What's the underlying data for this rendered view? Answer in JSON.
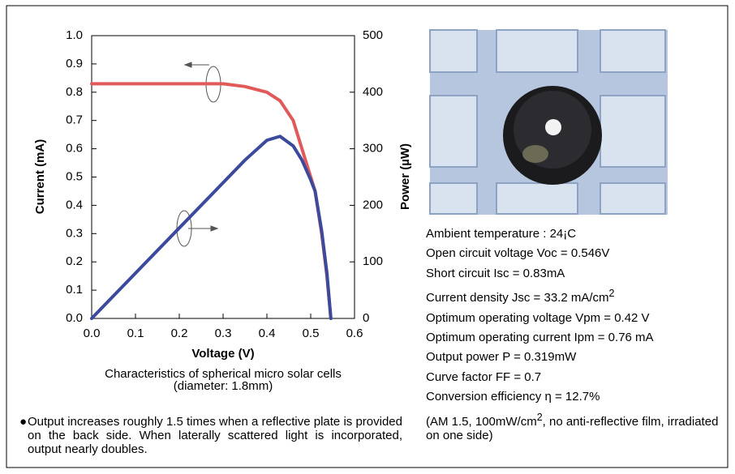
{
  "chart_data": {
    "type": "line",
    "x": [
      0,
      0.1,
      0.2,
      0.3,
      0.35,
      0.4,
      0.43,
      0.46,
      0.48,
      0.5,
      0.51,
      0.525,
      0.537,
      0.546
    ],
    "series": [
      {
        "color": "#e05a5a",
        "values": [
          0.83,
          0.83,
          0.83,
          0.83,
          0.82,
          0.8,
          0.77,
          0.7,
          0.6,
          0.5,
          0.45,
          0.3,
          0.15,
          0
        ]
      },
      {
        "color": "#3b4a9c",
        "axis": "y2",
        "values": [
          0,
          80,
          160,
          240,
          280,
          315,
          322,
          305,
          280,
          245,
          225,
          155,
          80,
          0
        ]
      }
    ],
    "xlim": [
      0,
      0.6
    ],
    "xticks": [
      {
        "value": 0,
        "label": "0.0"
      },
      0.1,
      0.2,
      0.3,
      0.4,
      0.5,
      0.6
    ],
    "ylim": [
      0,
      1
    ],
    "yticks": [
      {
        "value": 0,
        "label": "0.0"
      },
      0.1,
      0.2,
      0.3,
      0.4,
      0.5,
      0.6,
      0.7,
      0.8,
      0.9,
      {
        "value": 1,
        "label": "1.0"
      }
    ],
    "y2lim": [
      0,
      500
    ],
    "y2ticks": [
      0,
      100,
      200,
      300,
      400,
      500
    ],
    "xlabel": "Voltage (V)",
    "ylabel": "Current (mA)",
    "y2label": "Power (µW)"
  },
  "caption": {
    "line1": "Characteristics of spherical micro solar cells",
    "line2": "(diameter: 1.8mm)"
  },
  "note": "Output increases roughly 1.5 times when a reflective plate is provided on the back side. When laterally scattered light is incorporated, output nearly doubles.",
  "specs": [
    "Ambient temperature : 24¡C",
    "Open circuit voltage Voc = 0.546V",
    "Short circuit Isc = 0.83mA",
    {
      "text": "Current density Jsc = 33.2 mA/cm",
      "sup": "2"
    },
    "Optimum operating voltage Vpm = 0.42 V",
    "Optimum operating current Ipm = 0.76 mA",
    "Output power P = 0.319mW",
    "Curve factor FF = 0.7",
    "Conversion efficiency η = 12.7%",
    {
      "text": "(AM 1.5, 100mW/cm",
      "sup": "2",
      "rest": ", no anti-reflective film, irradiated on one side)"
    }
  ]
}
